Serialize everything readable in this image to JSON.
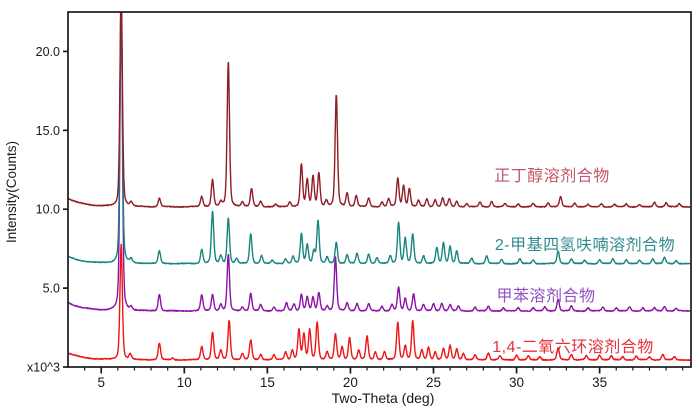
{
  "figure_title": "",
  "chart_data": {
    "type": "line",
    "subtype": "xrd-pattern-overlay",
    "title": "",
    "xlabel": "Two-Theta (deg)",
    "ylabel": "Intensity(Counts)",
    "y_scale_label": "x10^3",
    "xlim": [
      3,
      40.5
    ],
    "ylim": [
      0,
      22.5
    ],
    "grid": false,
    "legend_position": "inline-right",
    "x_major_ticks": [
      5,
      10,
      15,
      20,
      25,
      30,
      35
    ],
    "x_minor_tick_step": 1,
    "y_ticks": [
      {
        "value": 0,
        "label": "x10^3"
      },
      {
        "value": 5,
        "label": "5.0"
      },
      {
        "value": 10,
        "label": "10.0"
      },
      {
        "value": 15,
        "label": "15.0"
      },
      {
        "value": 20,
        "label": "20.0"
      }
    ],
    "axis_color": "#1a1a1a",
    "series": [
      {
        "name": "正丁醇溶剂合物",
        "color": "#8f1d27",
        "label_color": "#c4556a",
        "baseline": 10.15,
        "low_angle_bg": 0.55,
        "peaks": [
          [
            6.2,
            14
          ],
          [
            6.8,
            0.25
          ],
          [
            8.5,
            0.55
          ],
          [
            11.05,
            0.65
          ],
          [
            11.7,
            1.7
          ],
          [
            12.2,
            0.3
          ],
          [
            12.65,
            9.2
          ],
          [
            13.5,
            0.3
          ],
          [
            14.05,
            1.15
          ],
          [
            14.6,
            0.35
          ],
          [
            15.5,
            0.15
          ],
          [
            16.35,
            0.3
          ],
          [
            17.05,
            2.7
          ],
          [
            17.4,
            1.7
          ],
          [
            17.75,
            1.9
          ],
          [
            18.1,
            2.1
          ],
          [
            18.55,
            0.4
          ],
          [
            19.15,
            7.1
          ],
          [
            19.8,
            0.85
          ],
          [
            20.35,
            0.7
          ],
          [
            21.1,
            0.55
          ],
          [
            21.9,
            0.3
          ],
          [
            22.3,
            0.5
          ],
          [
            22.85,
            1.8
          ],
          [
            23.2,
            1.35
          ],
          [
            23.55,
            1.15
          ],
          [
            24.1,
            0.4
          ],
          [
            24.6,
            0.5
          ],
          [
            25.1,
            0.45
          ],
          [
            25.55,
            0.55
          ],
          [
            25.95,
            0.5
          ],
          [
            26.4,
            0.35
          ],
          [
            27.0,
            0.2
          ],
          [
            27.8,
            0.3
          ],
          [
            28.5,
            0.35
          ],
          [
            29.3,
            0.2
          ],
          [
            30.1,
            0.2
          ],
          [
            31.0,
            0.2
          ],
          [
            31.9,
            0.25
          ],
          [
            32.65,
            0.65
          ],
          [
            33.5,
            0.25
          ],
          [
            34.3,
            0.15
          ],
          [
            35.1,
            0.2
          ],
          [
            35.9,
            0.15
          ],
          [
            36.6,
            0.2
          ],
          [
            37.4,
            0.15
          ],
          [
            38.3,
            0.3
          ],
          [
            39.0,
            0.25
          ],
          [
            39.8,
            0.2
          ]
        ]
      },
      {
        "name": "2-甲基四氢呋喃溶剂合物",
        "color": "#17867f",
        "label_color": "#2e8b8d",
        "baseline": 6.55,
        "low_angle_bg": 0.45,
        "peaks": [
          [
            6.2,
            17
          ],
          [
            6.8,
            0.25
          ],
          [
            8.5,
            0.8
          ],
          [
            11.05,
            0.9
          ],
          [
            11.7,
            3.3
          ],
          [
            12.2,
            0.5
          ],
          [
            12.65,
            2.9
          ],
          [
            13.15,
            0.3
          ],
          [
            14.0,
            1.9
          ],
          [
            14.65,
            0.5
          ],
          [
            15.3,
            0.2
          ],
          [
            16.1,
            0.3
          ],
          [
            16.55,
            0.45
          ],
          [
            17.05,
            1.9
          ],
          [
            17.4,
            1.2
          ],
          [
            17.8,
            0.8
          ],
          [
            18.05,
            2.7
          ],
          [
            18.6,
            0.4
          ],
          [
            19.15,
            1.35
          ],
          [
            19.8,
            0.55
          ],
          [
            20.4,
            0.65
          ],
          [
            21.1,
            0.6
          ],
          [
            21.6,
            0.35
          ],
          [
            22.4,
            0.5
          ],
          [
            22.9,
            2.6
          ],
          [
            23.3,
            1.6
          ],
          [
            23.75,
            1.85
          ],
          [
            24.4,
            0.5
          ],
          [
            25.2,
            1.0
          ],
          [
            25.6,
            1.3
          ],
          [
            26.0,
            1.1
          ],
          [
            26.4,
            0.8
          ],
          [
            27.3,
            0.35
          ],
          [
            28.2,
            0.5
          ],
          [
            29.1,
            0.25
          ],
          [
            30.2,
            0.3
          ],
          [
            31.0,
            0.25
          ],
          [
            32.5,
            0.8
          ],
          [
            33.3,
            0.3
          ],
          [
            34.1,
            0.2
          ],
          [
            35.0,
            0.25
          ],
          [
            35.8,
            0.3
          ],
          [
            36.6,
            0.25
          ],
          [
            37.4,
            0.2
          ],
          [
            38.2,
            0.3
          ],
          [
            38.9,
            0.4
          ],
          [
            39.6,
            0.2
          ]
        ]
      },
      {
        "name": "甲苯溶剂合物",
        "color": "#8c12a8",
        "label_color": "#9050c0",
        "baseline": 3.55,
        "low_angle_bg": 0.55,
        "peaks": [
          [
            6.2,
            20
          ],
          [
            6.8,
            0.2
          ],
          [
            8.5,
            1.05
          ],
          [
            11.05,
            1.0
          ],
          [
            11.7,
            1.05
          ],
          [
            12.2,
            0.4
          ],
          [
            12.65,
            3.6
          ],
          [
            13.5,
            0.25
          ],
          [
            14.0,
            1.1
          ],
          [
            14.6,
            0.4
          ],
          [
            15.4,
            0.25
          ],
          [
            16.15,
            0.5
          ],
          [
            16.6,
            0.45
          ],
          [
            17.05,
            1.05
          ],
          [
            17.4,
            0.9
          ],
          [
            17.75,
            0.85
          ],
          [
            18.1,
            1.15
          ],
          [
            18.6,
            0.3
          ],
          [
            19.1,
            3.4
          ],
          [
            19.8,
            0.5
          ],
          [
            20.4,
            0.5
          ],
          [
            21.1,
            0.45
          ],
          [
            21.9,
            0.3
          ],
          [
            22.5,
            0.4
          ],
          [
            22.9,
            1.5
          ],
          [
            23.3,
            0.8
          ],
          [
            23.8,
            1.1
          ],
          [
            24.4,
            0.4
          ],
          [
            25.0,
            0.45
          ],
          [
            25.5,
            0.5
          ],
          [
            26.0,
            0.4
          ],
          [
            26.5,
            0.3
          ],
          [
            27.5,
            0.25
          ],
          [
            28.3,
            0.3
          ],
          [
            29.2,
            0.2
          ],
          [
            30.1,
            0.2
          ],
          [
            31.0,
            0.2
          ],
          [
            31.7,
            0.25
          ],
          [
            32.5,
            0.75
          ],
          [
            33.3,
            0.3
          ],
          [
            34.3,
            0.2
          ],
          [
            35.2,
            0.25
          ],
          [
            36.0,
            0.2
          ],
          [
            36.8,
            0.25
          ],
          [
            37.6,
            0.2
          ],
          [
            38.3,
            0.2
          ],
          [
            38.9,
            0.3
          ],
          [
            39.6,
            0.15
          ]
        ]
      },
      {
        "name": "1,4-二氧六环溶剂合物",
        "color": "#ed1515",
        "label_color": "#e4323c",
        "baseline": 0.45,
        "low_angle_bg": 0.45,
        "peaks": [
          [
            6.2,
            7.3
          ],
          [
            6.75,
            0.35
          ],
          [
            8.5,
            1.05
          ],
          [
            9.3,
            0.12
          ],
          [
            11.05,
            0.85
          ],
          [
            11.7,
            1.75
          ],
          [
            12.2,
            0.6
          ],
          [
            12.7,
            2.5
          ],
          [
            13.5,
            0.4
          ],
          [
            14.0,
            1.25
          ],
          [
            14.6,
            0.35
          ],
          [
            15.4,
            0.3
          ],
          [
            16.1,
            0.5
          ],
          [
            16.5,
            0.6
          ],
          [
            16.9,
            1.9
          ],
          [
            17.2,
            1.6
          ],
          [
            17.55,
            1.9
          ],
          [
            18.0,
            2.4
          ],
          [
            18.6,
            0.5
          ],
          [
            19.1,
            1.6
          ],
          [
            19.5,
            0.8
          ],
          [
            19.95,
            1.4
          ],
          [
            20.5,
            0.6
          ],
          [
            21.0,
            1.5
          ],
          [
            21.5,
            0.5
          ],
          [
            22.05,
            0.5
          ],
          [
            22.85,
            2.4
          ],
          [
            23.3,
            0.9
          ],
          [
            23.75,
            2.45
          ],
          [
            24.3,
            0.6
          ],
          [
            24.7,
            0.8
          ],
          [
            25.1,
            0.5
          ],
          [
            25.6,
            0.7
          ],
          [
            26.0,
            0.9
          ],
          [
            26.4,
            0.7
          ],
          [
            26.8,
            0.4
          ],
          [
            27.5,
            0.3
          ],
          [
            28.3,
            0.45
          ],
          [
            29.0,
            0.25
          ],
          [
            30.0,
            0.3
          ],
          [
            30.7,
            0.25
          ],
          [
            31.4,
            0.2
          ],
          [
            32.5,
            0.75
          ],
          [
            33.3,
            0.35
          ],
          [
            34.2,
            0.25
          ],
          [
            35.0,
            0.3
          ],
          [
            35.7,
            0.25
          ],
          [
            36.4,
            0.2
          ],
          [
            37.2,
            0.25
          ],
          [
            38.0,
            0.2
          ],
          [
            38.8,
            0.35
          ],
          [
            39.5,
            0.2
          ]
        ]
      }
    ],
    "draw_order": [
      2,
      1,
      0,
      3
    ]
  }
}
